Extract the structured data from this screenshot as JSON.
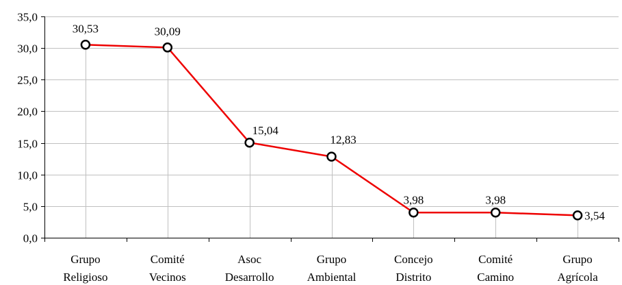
{
  "chart_data": {
    "type": "line",
    "categories": [
      [
        "Grupo",
        "Religioso"
      ],
      [
        "Comité",
        "Vecinos"
      ],
      [
        "Asoc",
        "Desarrollo"
      ],
      [
        "Grupo",
        "Ambiental"
      ],
      [
        "Concejo",
        "Distrito"
      ],
      [
        "Comité",
        "Camino"
      ],
      [
        "Grupo",
        "Agrícola"
      ]
    ],
    "values": [
      30.53,
      30.09,
      15.04,
      12.83,
      3.98,
      3.98,
      3.54
    ],
    "data_labels": [
      "30,53",
      "30,09",
      "15,04",
      "12,83",
      "3,98",
      "3,98",
      "3,54"
    ],
    "y_ticks": [
      0,
      5,
      10,
      15,
      20,
      25,
      30,
      35
    ],
    "y_tick_labels": [
      "0,0",
      "5,0",
      "10,0",
      "15,0",
      "20,0",
      "25,0",
      "30,0",
      "35,0"
    ],
    "ylim": [
      0,
      35
    ],
    "grid": true,
    "drop_lines": true,
    "title": "",
    "xlabel": "",
    "ylabel": "",
    "colors": {
      "line": "#ee0000",
      "marker_fill": "#ffffff",
      "marker_stroke": "#000000",
      "grid": "#c0c0c0",
      "drop_line": "#c0c0c0",
      "axis": "#000000"
    }
  }
}
